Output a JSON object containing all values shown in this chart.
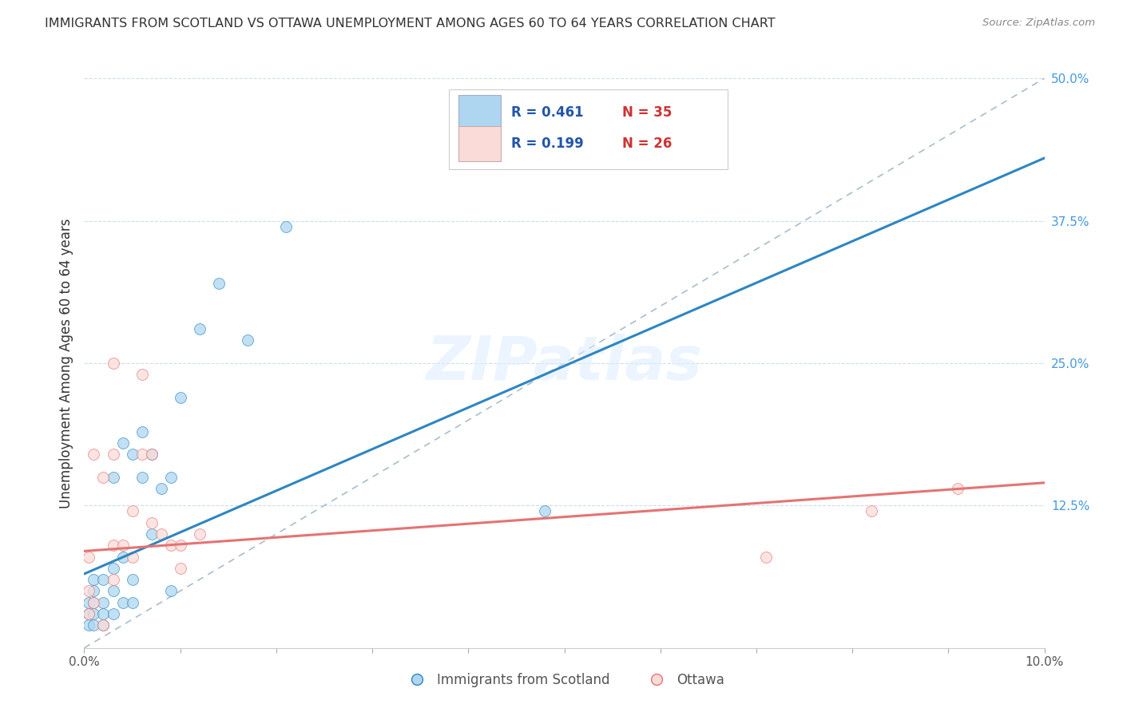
{
  "title": "IMMIGRANTS FROM SCOTLAND VS OTTAWA UNEMPLOYMENT AMONG AGES 60 TO 64 YEARS CORRELATION CHART",
  "source": "Source: ZipAtlas.com",
  "ylabel": "Unemployment Among Ages 60 to 64 years",
  "xmin": 0.0,
  "xmax": 0.1,
  "ymin": 0.0,
  "ymax": 0.5,
  "yticks_right": [
    0.0,
    0.125,
    0.25,
    0.375,
    0.5
  ],
  "ytick_labels_right": [
    "",
    "12.5%",
    "25.0%",
    "37.5%",
    "50.0%"
  ],
  "xticks": [
    0.0,
    0.01,
    0.02,
    0.03,
    0.04,
    0.05,
    0.06,
    0.07,
    0.08,
    0.09,
    0.1
  ],
  "xtick_labels": [
    "0.0%",
    "",
    "",
    "",
    "",
    "",
    "",
    "",
    "",
    "",
    "10.0%"
  ],
  "legend_R1": "R = 0.461",
  "legend_N1": "N = 35",
  "legend_R2": "R = 0.199",
  "legend_N2": "N = 26",
  "legend_label1": "Immigrants from Scotland",
  "legend_label2": "Ottawa",
  "color_blue": "#AED6F1",
  "color_blue_line": "#2E86C1",
  "color_pink": "#F1948A",
  "color_pink_fill": "#FADBD8",
  "color_pink_line": "#E57373",
  "color_dash": "#AABCCC",
  "color_grid": "#DDEEFF",
  "watermark": "ZIPatlas",
  "scatter_blue_x": [
    0.0005,
    0.0005,
    0.0005,
    0.001,
    0.001,
    0.001,
    0.001,
    0.001,
    0.002,
    0.002,
    0.002,
    0.002,
    0.003,
    0.003,
    0.003,
    0.003,
    0.004,
    0.004,
    0.004,
    0.005,
    0.005,
    0.005,
    0.006,
    0.006,
    0.007,
    0.007,
    0.008,
    0.009,
    0.009,
    0.01,
    0.012,
    0.014,
    0.017,
    0.021,
    0.048
  ],
  "scatter_blue_y": [
    0.02,
    0.03,
    0.04,
    0.02,
    0.03,
    0.04,
    0.05,
    0.06,
    0.02,
    0.03,
    0.04,
    0.06,
    0.03,
    0.05,
    0.07,
    0.15,
    0.04,
    0.08,
    0.18,
    0.04,
    0.06,
    0.17,
    0.15,
    0.19,
    0.1,
    0.17,
    0.14,
    0.05,
    0.15,
    0.22,
    0.28,
    0.32,
    0.27,
    0.37,
    0.12
  ],
  "scatter_pink_x": [
    0.0005,
    0.0005,
    0.0005,
    0.001,
    0.001,
    0.002,
    0.002,
    0.003,
    0.003,
    0.003,
    0.004,
    0.005,
    0.005,
    0.006,
    0.006,
    0.007,
    0.007,
    0.008,
    0.009,
    0.01,
    0.01,
    0.012,
    0.071,
    0.082,
    0.091,
    0.003
  ],
  "scatter_pink_y": [
    0.03,
    0.05,
    0.08,
    0.04,
    0.17,
    0.02,
    0.15,
    0.06,
    0.09,
    0.17,
    0.09,
    0.08,
    0.12,
    0.17,
    0.24,
    0.17,
    0.11,
    0.1,
    0.09,
    0.07,
    0.09,
    0.1,
    0.08,
    0.12,
    0.14,
    0.25
  ],
  "blue_line_x": [
    0.0,
    0.1
  ],
  "blue_line_y": [
    0.065,
    0.43
  ],
  "pink_line_x": [
    0.0,
    0.1
  ],
  "pink_line_y": [
    0.085,
    0.145
  ],
  "diag_line_x": [
    0.0,
    0.1
  ],
  "diag_line_y": [
    0.0,
    0.5
  ]
}
